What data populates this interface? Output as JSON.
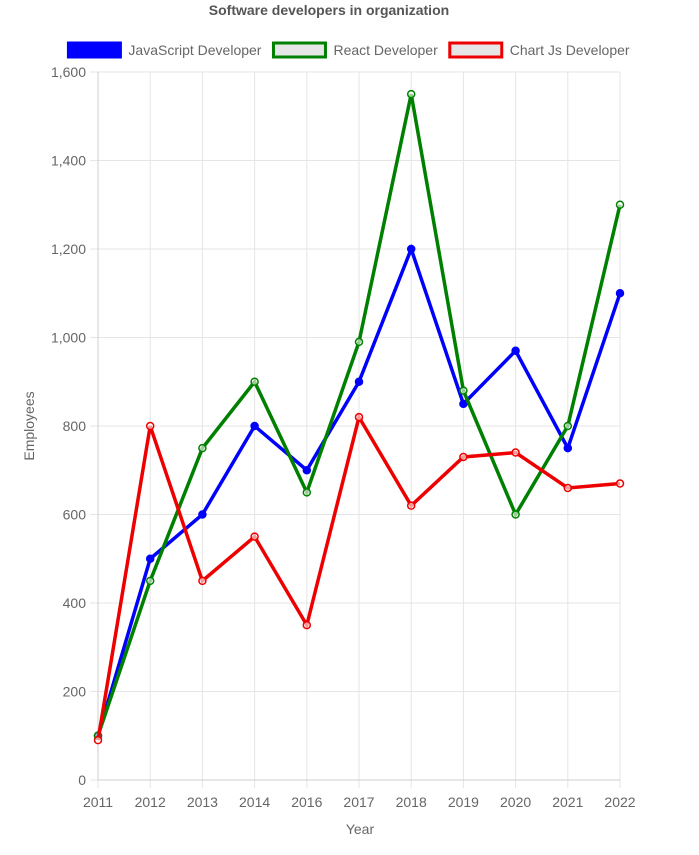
{
  "chart_data": {
    "type": "line",
    "title": "Software developers in organization",
    "xlabel": "Year",
    "ylabel": "Employees",
    "categories": [
      "2011",
      "2012",
      "2013",
      "2014",
      "2016",
      "2017",
      "2018",
      "2019",
      "2020",
      "2021",
      "2022"
    ],
    "ylim": [
      0,
      1600
    ],
    "yticks": [
      "0",
      "200",
      "400",
      "600",
      "800",
      "1,000",
      "1,200",
      "1,400",
      "1,600"
    ],
    "ytick_values": [
      0,
      200,
      400,
      600,
      800,
      1000,
      1200,
      1400,
      1600
    ],
    "grid": true,
    "legend_position": "top",
    "series": [
      {
        "name": "JavaScript Developer",
        "color": "#0000ff",
        "legend_fill": "#0000ff",
        "filled_points": true,
        "values": [
          100,
          500,
          600,
          800,
          700,
          900,
          1200,
          850,
          970,
          750,
          1100
        ]
      },
      {
        "name": "React Developer",
        "color": "#008000",
        "legend_fill": "#e6e6e6",
        "filled_points": false,
        "values": [
          100,
          450,
          750,
          900,
          650,
          990,
          1550,
          880,
          600,
          800,
          1300
        ]
      },
      {
        "name": "Chart Js Developer",
        "color": "#ee0000",
        "legend_fill": "#e6e6e6",
        "filled_points": false,
        "values": [
          90,
          800,
          450,
          550,
          350,
          820,
          620,
          730,
          740,
          660,
          670
        ]
      }
    ]
  }
}
